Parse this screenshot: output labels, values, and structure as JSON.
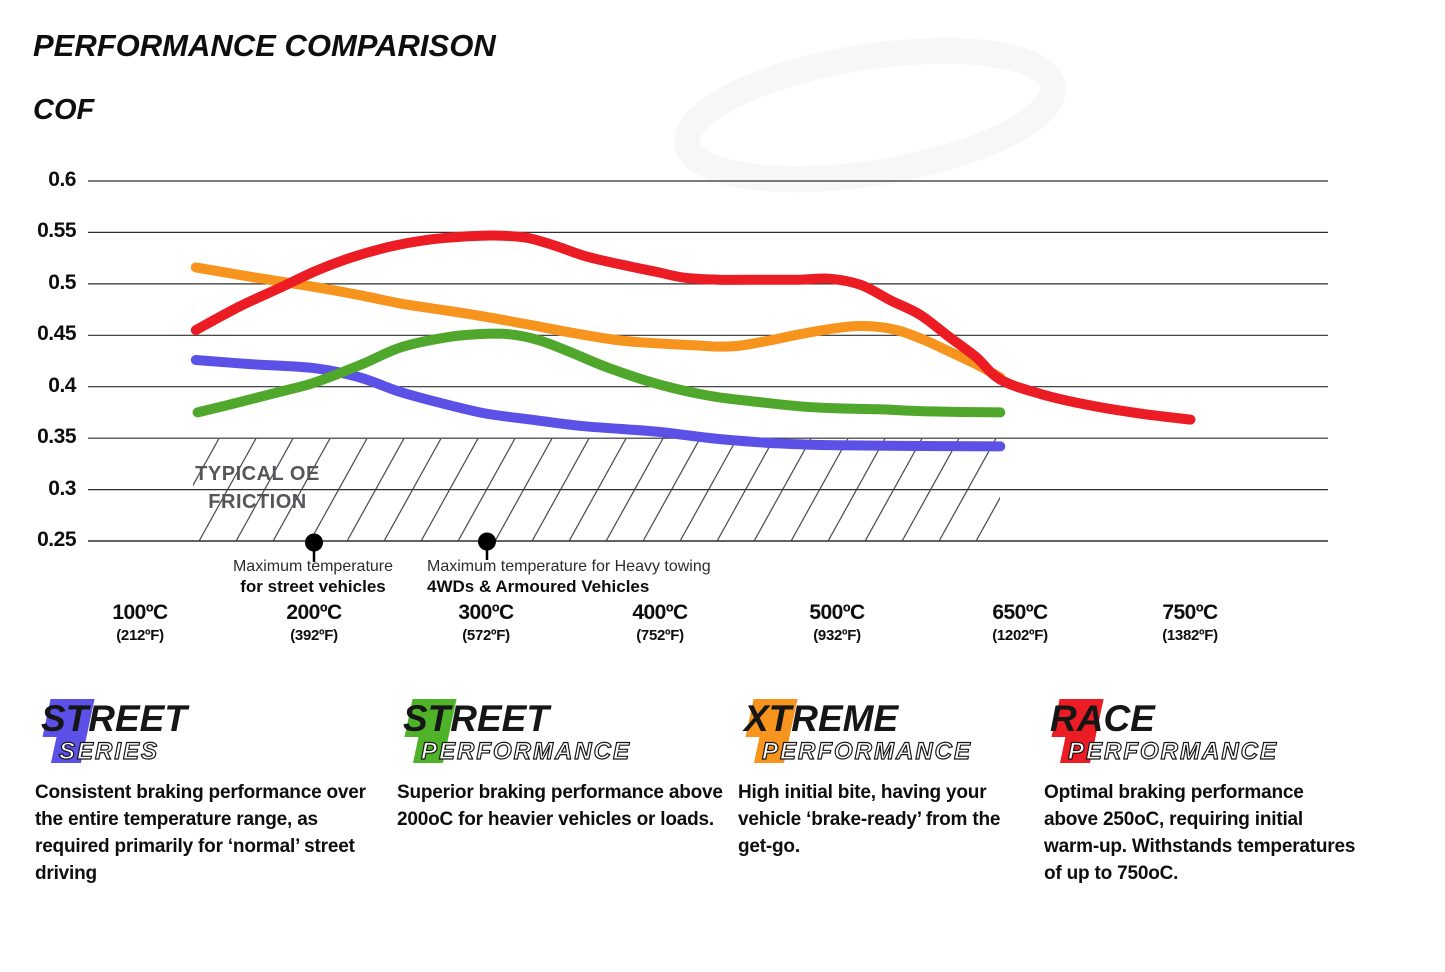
{
  "header": {
    "title": "PERFORMANCE COMPARISON"
  },
  "chart": {
    "y_axis_title": "COF",
    "y_ticks": [
      "0.6",
      "0.55",
      "0.5",
      "0.45",
      "0.4",
      "0.35",
      "0.3",
      "0.25"
    ],
    "x_ticks": [
      {
        "c": "100ºC",
        "f": "(212ºF)"
      },
      {
        "c": "200ºC",
        "f": "(392ºF)"
      },
      {
        "c": "300ºC",
        "f": "(572ºF)"
      },
      {
        "c": "400ºC",
        "f": "(752ºF)"
      },
      {
        "c": "500ºC",
        "f": "(932ºF)"
      },
      {
        "c": "650ºC",
        "f": "(1202ºF)"
      },
      {
        "c": "750ºC",
        "f": "(1382ºF)"
      }
    ],
    "oe_band": {
      "line1": "TYPICAL OE",
      "line2": "FRICTION"
    },
    "annotations": [
      {
        "line1": "Maximum temperature",
        "line2": "for street vehicles"
      },
      {
        "line1": "Maximum temperature for Heavy towing",
        "line2": "4WDs & Armoured Vehicles"
      }
    ]
  },
  "chart_data": {
    "type": "line",
    "title": "PERFORMANCE COMPARISON",
    "ylabel": "COF",
    "ylim": [
      0.25,
      0.6
    ],
    "y_tick_step": 0.05,
    "grid": "horizontal",
    "legend_position": "below",
    "categories": [
      "100°C (212°F)",
      "200°C (392°F)",
      "300°C (572°F)",
      "400°C (752°F)",
      "500°C (932°F)",
      "650°C (1202°F)",
      "750°C (1382°F)"
    ],
    "series": [
      {
        "name": "Street Series",
        "color": "#5B51E6",
        "values_at_ticks": [
          0.428,
          0.42,
          0.378,
          0.357,
          0.346,
          0.345,
          null
        ],
        "points": [
          [
            0.32,
            0.426
          ],
          [
            0.63,
            0.422
          ],
          [
            1.0,
            0.418
          ],
          [
            1.26,
            0.409
          ],
          [
            1.49,
            0.395
          ],
          [
            1.75,
            0.383
          ],
          [
            1.98,
            0.374
          ],
          [
            2.24,
            0.368
          ],
          [
            2.52,
            0.362
          ],
          [
            2.75,
            0.359
          ],
          [
            2.98,
            0.356
          ],
          [
            3.27,
            0.35
          ],
          [
            3.55,
            0.346
          ],
          [
            3.78,
            0.344
          ],
          [
            3.99,
            0.343
          ],
          [
            4.36,
            0.3425
          ],
          [
            4.93,
            0.342
          ]
        ]
      },
      {
        "name": "Street Performance",
        "color": "#4FA72B",
        "values_at_ticks": [
          0.379,
          0.407,
          0.452,
          0.403,
          0.382,
          0.377,
          null
        ],
        "points": [
          [
            0.33,
            0.375
          ],
          [
            0.57,
            0.385
          ],
          [
            0.8,
            0.395
          ],
          [
            1.0,
            0.404
          ],
          [
            1.26,
            0.421
          ],
          [
            1.49,
            0.438
          ],
          [
            1.72,
            0.447
          ],
          [
            1.93,
            0.451
          ],
          [
            2.12,
            0.451
          ],
          [
            2.29,
            0.445
          ],
          [
            2.46,
            0.434
          ],
          [
            2.69,
            0.418
          ],
          [
            2.98,
            0.402
          ],
          [
            3.27,
            0.391
          ],
          [
            3.55,
            0.385
          ],
          [
            3.78,
            0.381
          ],
          [
            3.99,
            0.379
          ],
          [
            4.24,
            0.378
          ],
          [
            4.53,
            0.376
          ],
          [
            4.93,
            0.375
          ]
        ]
      },
      {
        "name": "Xtreme Performance",
        "color": "#F7941E",
        "values_at_ticks": [
          0.518,
          0.5,
          0.471,
          0.44,
          0.457,
          0.412,
          null
        ],
        "points": [
          [
            0.32,
            0.516
          ],
          [
            0.63,
            0.507
          ],
          [
            1.0,
            0.497
          ],
          [
            1.26,
            0.489
          ],
          [
            1.49,
            0.481
          ],
          [
            1.72,
            0.475
          ],
          [
            1.98,
            0.468
          ],
          [
            2.24,
            0.46
          ],
          [
            2.49,
            0.452
          ],
          [
            2.75,
            0.445
          ],
          [
            2.98,
            0.442
          ],
          [
            3.21,
            0.44
          ],
          [
            3.31,
            0.439
          ],
          [
            3.44,
            0.44
          ],
          [
            3.61,
            0.445
          ],
          [
            3.78,
            0.451
          ],
          [
            3.99,
            0.457
          ],
          [
            4.12,
            0.459
          ],
          [
            4.24,
            0.458
          ],
          [
            4.36,
            0.454
          ],
          [
            4.5,
            0.445
          ],
          [
            4.64,
            0.434
          ],
          [
            4.79,
            0.422
          ],
          [
            4.93,
            0.409
          ]
        ]
      },
      {
        "name": "Race Performance",
        "color": "#EC1C24",
        "values_at_ticks": [
          0.456,
          0.522,
          0.546,
          0.508,
          0.505,
          0.411,
          0.369
        ],
        "points": [
          [
            0.32,
            0.455
          ],
          [
            0.57,
            0.478
          ],
          [
            0.8,
            0.496
          ],
          [
            1.0,
            0.512
          ],
          [
            1.2,
            0.525
          ],
          [
            1.43,
            0.536
          ],
          [
            1.66,
            0.543
          ],
          [
            1.86,
            0.546
          ],
          [
            2.03,
            0.547
          ],
          [
            2.21,
            0.545
          ],
          [
            2.38,
            0.537
          ],
          [
            2.55,
            0.527
          ],
          [
            2.75,
            0.519
          ],
          [
            2.95,
            0.512
          ],
          [
            3.12,
            0.506
          ],
          [
            3.32,
            0.504
          ],
          [
            3.55,
            0.504
          ],
          [
            3.78,
            0.504
          ],
          [
            3.95,
            0.505
          ],
          [
            4.13,
            0.499
          ],
          [
            4.3,
            0.484
          ],
          [
            4.47,
            0.47
          ],
          [
            4.64,
            0.448
          ],
          [
            4.79,
            0.429
          ],
          [
            4.93,
            0.407
          ],
          [
            5.16,
            0.393
          ],
          [
            5.44,
            0.382
          ],
          [
            5.73,
            0.374
          ],
          [
            6.02,
            0.368
          ]
        ]
      }
    ],
    "bands": [
      {
        "label": "TYPICAL OE FRICTION",
        "y_range": [
          0.25,
          0.35
        ],
        "style": "hatched"
      }
    ],
    "point_annotations": [
      {
        "at": "200°C",
        "label": "Maximum temperature for street vehicles"
      },
      {
        "at": "300°C",
        "label": "Maximum temperature for Heavy towing 4WDs & Armoured Vehicles"
      }
    ]
  },
  "legend": [
    {
      "line1": "STREET",
      "line2": "SERIES",
      "color": "#5B51E6",
      "description": "Consistent braking performance over the entire temperature range, as required primarily for ‘normal’ street driving"
    },
    {
      "line1": "STREET",
      "line2": "PERFORMANCE",
      "color": "#4FB32A",
      "description": "Superior braking performance above 200oC for heavier vehicles or loads."
    },
    {
      "line1": "XTREME",
      "line2": "PERFORMANCE",
      "color": "#F7941E",
      "description": "High initial bite, having your vehicle ‘brake-ready’ from the get-go."
    },
    {
      "line1": "RACE",
      "line2": "PERFORMANCE",
      "color": "#EC1C24",
      "description": "Optimal braking performance above 250oC, requiring initial warm-up. Withstands temperatures of up to 750oC."
    }
  ],
  "colors": {
    "grid": "#2E2E2E",
    "hatch": "#3A3A3A",
    "oe_text": "#55565A",
    "marker": "#000000",
    "text": "#111111"
  }
}
